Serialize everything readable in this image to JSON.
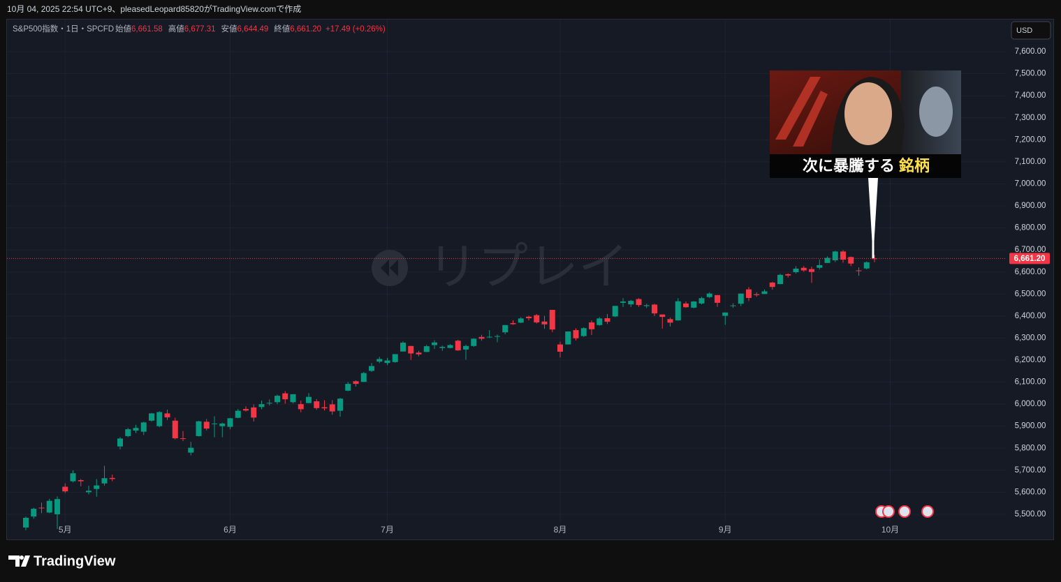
{
  "header": {
    "text": "10月 04, 2025 22:54 UTC+9、pleasedLeopard85820がTradingView.comで作成"
  },
  "chart_data": {
    "type": "candlestick",
    "symbol": "S&P500指数・1日・SPCFD",
    "ohlc_legend": [
      {
        "label": "始値",
        "value": "6,661.58"
      },
      {
        "label": "高値",
        "value": "6,677.31"
      },
      {
        "label": "安値",
        "value": "6,644.49"
      },
      {
        "label": "終値",
        "value": "6,661.20"
      }
    ],
    "change": "+17.49 (+0.26%)",
    "currency": "USD",
    "watermark": "リプレイ",
    "up_color": "#089981",
    "down_color": "#f23645",
    "categories": [
      null,
      null,
      null,
      null,
      null,
      "5月",
      null,
      null,
      null,
      null,
      null,
      null,
      null,
      null,
      null,
      null,
      null,
      null,
      null,
      null,
      null,
      null,
      null,
      null,
      null,
      null,
      "6月",
      null,
      null,
      null,
      null,
      null,
      null,
      null,
      null,
      null,
      null,
      null,
      null,
      null,
      null,
      null,
      null,
      null,
      null,
      null,
      "7月",
      null,
      null,
      null,
      null,
      null,
      null,
      null,
      null,
      null,
      null,
      null,
      null,
      null,
      null,
      null,
      null,
      null,
      null,
      null,
      null,
      null,
      "8月",
      null,
      null,
      null,
      null,
      null,
      null,
      null,
      null,
      null,
      null,
      null,
      null,
      null,
      null,
      null,
      null,
      null,
      null,
      null,
      null,
      "9月",
      null,
      null,
      null,
      null,
      null,
      null,
      null,
      null,
      null,
      null,
      null,
      null,
      null,
      null,
      null,
      null,
      null,
      null,
      null,
      null,
      "10月"
    ],
    "open": [
      5440,
      5490,
      5530,
      5508,
      5500,
      5625,
      5650,
      5655,
      5600,
      5615,
      5640,
      5665,
      5808,
      5855,
      5880,
      5875,
      5925,
      5900,
      5958,
      5925,
      5845,
      5780,
      5855,
      5920,
      5910,
      5900,
      5897,
      5938,
      5978,
      5985,
      5987,
      6004,
      6009,
      6049,
      6009,
      6000,
      6005,
      6013,
      5986,
      5999,
      5970,
      6061,
      6104,
      6101,
      6151,
      6193,
      6187,
      6191,
      6239,
      6264,
      6234,
      6237,
      6268,
      6255,
      6255,
      6288,
      6248,
      6264,
      6305,
      6304,
      6306,
      6326,
      6368,
      6370,
      6397,
      6404,
      6375,
      6428,
      6271,
      6271,
      6336,
      6309,
      6371,
      6359,
      6390,
      6398,
      6460,
      6453,
      6477,
      6445,
      6452,
      6407,
      6386,
      6380,
      6457,
      6438,
      6457,
      6486,
      6495,
      6401,
      6445,
      6456,
      6521,
      6499,
      6500,
      6552,
      6545,
      6590,
      6599,
      6619,
      6613,
      6619,
      6641,
      6653,
      6693,
      6668,
      6607,
      6616,
      6661.58,
      null,
      null
    ],
    "high": [
      5490,
      5530,
      5553,
      5570,
      5581,
      5640,
      5700,
      5660,
      5630,
      5660,
      5720,
      5680,
      5850,
      5892,
      5906,
      5920,
      5960,
      5968,
      5975,
      5938,
      5878,
      5829,
      5924,
      5933,
      5945,
      5916,
      5938,
      5978,
      5990,
      5999,
      6016,
      6021,
      6043,
      6059,
      6045,
      6016,
      6050,
      6023,
      6018,
      6018,
      6028,
      6101,
      6108,
      6146,
      6187,
      6215,
      6210,
      6227,
      6285,
      6265,
      6242,
      6269,
      6290,
      6266,
      6272,
      6292,
      6270,
      6299,
      6315,
      6336,
      6316,
      6360,
      6381,
      6395,
      6402,
      6409,
      6401,
      6428,
      6284,
      6330,
      6344,
      6349,
      6380,
      6395,
      6409,
      6446,
      6481,
      6473,
      6481,
      6456,
      6456,
      6407,
      6393,
      6481,
      6466,
      6468,
      6487,
      6508,
      6495,
      6416,
      6458,
      6502,
      6532,
      6508,
      6520,
      6555,
      6592,
      6594,
      6626,
      6627,
      6624,
      6657,
      6671,
      6696,
      6699,
      6670,
      6621,
      6648,
      6677.31,
      null,
      null
    ],
    "low": [
      5428,
      5480,
      5505,
      5505,
      5433,
      5597,
      5645,
      5627,
      5590,
      5580,
      5630,
      5650,
      5795,
      5850,
      5868,
      5860,
      5921,
      5895,
      5928,
      5840,
      5832,
      5767,
      5853,
      5881,
      5850,
      5850,
      5885,
      5936,
      5966,
      5921,
      5977,
      5994,
      6000,
      6002,
      6003,
      5963,
      6004,
      5974,
      5971,
      5952,
      5943,
      6059,
      6080,
      6101,
      6146,
      6186,
      6177,
      6188,
      6239,
      6201,
      6217,
      6236,
      6251,
      6242,
      6253,
      6242,
      6202,
      6260,
      6288,
      6300,
      6281,
      6317,
      6360,
      6368,
      6380,
      6366,
      6342,
      6327,
      6212,
      6271,
      6289,
      6305,
      6314,
      6356,
      6364,
      6395,
      6441,
      6441,
      6442,
      6436,
      6400,
      6343,
      6353,
      6380,
      6438,
      6435,
      6453,
      6481,
      6442,
      6360,
      6437,
      6445,
      6468,
      6488,
      6500,
      6520,
      6546,
      6575,
      6593,
      6601,
      6551,
      6611,
      6641,
      6645,
      6642,
      6627,
      6583,
      6612,
      6644.49,
      null,
      null
    ],
    "close": [
      5484,
      5525,
      5529,
      5561,
      5569,
      5604,
      5686,
      5650,
      5607,
      5631,
      5664,
      5660,
      5844,
      5886,
      5892,
      5917,
      5958,
      5964,
      5940,
      5845,
      5842,
      5802,
      5922,
      5889,
      5912,
      5912,
      5936,
      5970,
      5971,
      5939,
      6000,
      6006,
      6038,
      6022,
      6045,
      5977,
      6033,
      5982,
      5981,
      5967,
      6025,
      6092,
      6092,
      6141,
      6173,
      6205,
      6198,
      6227,
      6279,
      6230,
      6226,
      6263,
      6280,
      6260,
      6268,
      6244,
      6264,
      6297,
      6297,
      6306,
      6309,
      6359,
      6363,
      6389,
      6390,
      6371,
      6362,
      6339,
      6238,
      6330,
      6299,
      6345,
      6340,
      6389,
      6374,
      6446,
      6466,
      6469,
      6450,
      6449,
      6412,
      6396,
      6370,
      6467,
      6440,
      6466,
      6481,
      6502,
      6460,
      6416,
      6448,
      6502,
      6482,
      6495,
      6512,
      6532,
      6587,
      6584,
      6615,
      6607,
      6600,
      6631,
      6664,
      6693,
      6656,
      6638,
      6605,
      6644,
      6661.2,
      null,
      null
    ],
    "ylim": [
      5389,
      7746
    ],
    "yticks": [
      {
        "value": 5500,
        "label": "5,500.00"
      },
      {
        "value": 5600,
        "label": "5,600.00"
      },
      {
        "value": 5700,
        "label": "5,700.00"
      },
      {
        "value": 5800,
        "label": "5,800.00"
      },
      {
        "value": 5900,
        "label": "5,900.00"
      },
      {
        "value": 6000,
        "label": "6,000.00"
      },
      {
        "value": 6100,
        "label": "6,100.00"
      },
      {
        "value": 6200,
        "label": "6,200.00"
      },
      {
        "value": 6300,
        "label": "6,300.00"
      },
      {
        "value": 6400,
        "label": "6,400.00"
      },
      {
        "value": 6500,
        "label": "6,500.00"
      },
      {
        "value": 6600,
        "label": "6,600.00"
      },
      {
        "value": 6700,
        "label": "6,700.00"
      },
      {
        "value": 6800,
        "label": "6,800.00"
      },
      {
        "value": 6900,
        "label": "6,900.00"
      },
      {
        "value": 7000,
        "label": "7,000.00"
      },
      {
        "value": 7100,
        "label": "7,100.00"
      },
      {
        "value": 7200,
        "label": "7,200.00"
      },
      {
        "value": 7300,
        "label": "7,300.00"
      },
      {
        "value": 7400,
        "label": "7,400.00"
      },
      {
        "value": 7500,
        "label": "7,500.00"
      },
      {
        "value": 7600,
        "label": "7,600.00"
      }
    ],
    "last_price": {
      "value": 6661.2,
      "label": "6,661.20"
    },
    "grid": true,
    "thumbnail": {
      "text": "次に暴騰する",
      "highlight": "銘柄"
    }
  },
  "footer": {
    "logo": "TradingView"
  }
}
